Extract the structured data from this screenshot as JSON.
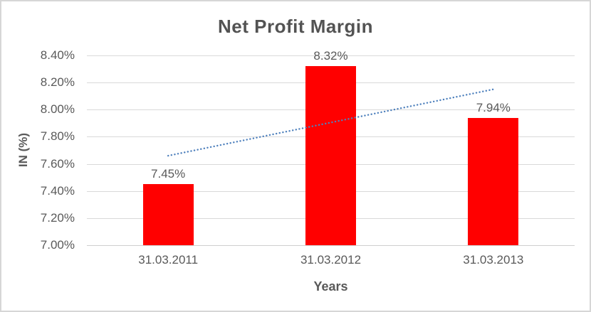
{
  "chart_data": {
    "type": "bar",
    "title": "Net Profit Margin",
    "xlabel": "Years",
    "ylabel": "IN (%)",
    "categories": [
      "31.03.2011",
      "31.03.2012",
      "31.03.2013"
    ],
    "values": [
      7.45,
      8.32,
      7.94
    ],
    "data_labels": [
      "7.45%",
      "8.32%",
      "7.94%"
    ],
    "yticks": [
      "8.40%",
      "8.20%",
      "8.00%",
      "7.80%",
      "7.60%",
      "7.40%",
      "7.20%",
      "7.00%"
    ],
    "ylim": [
      7.0,
      8.4
    ],
    "ytick_step": 0.2,
    "grid": "horizontal-major",
    "legend": "none",
    "trendline": {
      "style": "linear-dotted",
      "start_value": 7.66,
      "end_value": 8.15
    },
    "colors": {
      "bar": "#ff0000",
      "trendline": "#4f81bd",
      "gridline": "#d9d9d9",
      "axis_line": "#cfcfcf",
      "title_text": "#535353",
      "label_text": "#595959",
      "frame_border": "#d6d6d6"
    }
  }
}
